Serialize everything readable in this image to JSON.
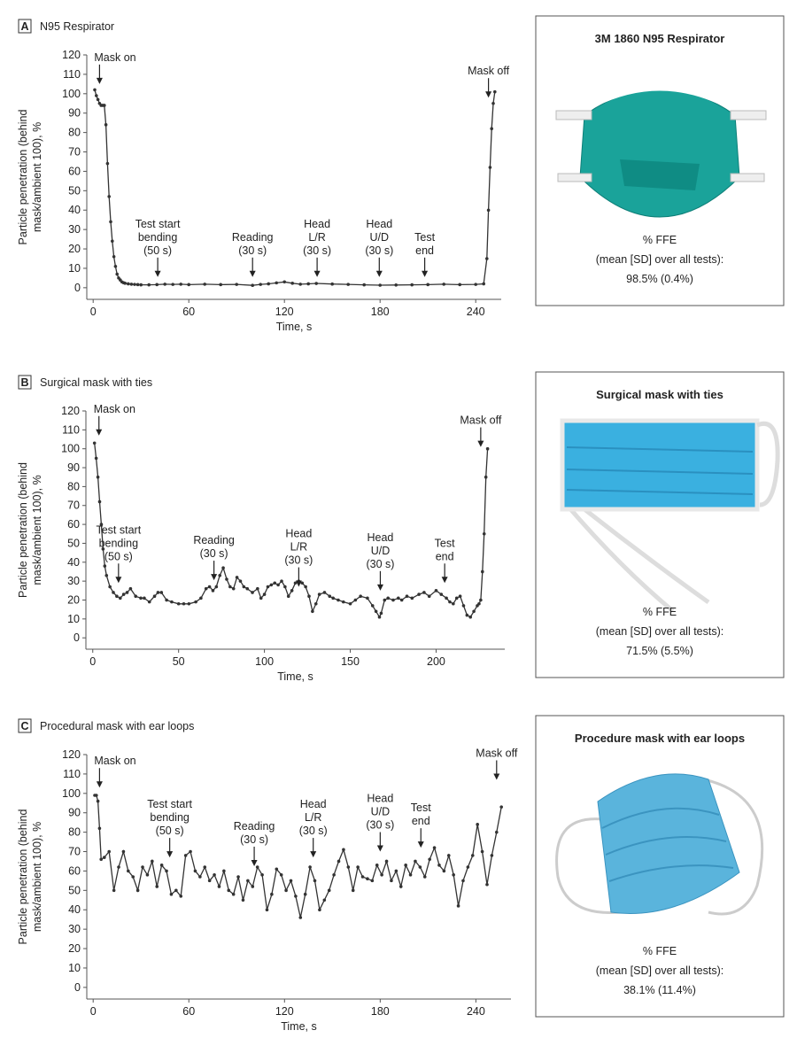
{
  "chart_data": [
    {
      "type": "line",
      "panel": "A",
      "title": "N95 Respirator",
      "xlabel": "Time, s",
      "ylabel": [
        "Particle penetration (behind",
        "mask/ambient 100), %"
      ],
      "color": "#333333",
      "xlim": [
        -4,
        256
      ],
      "ylim": [
        -6,
        120
      ],
      "xticks": [
        0,
        60,
        120,
        180,
        240
      ],
      "yticks": [
        0,
        10,
        20,
        30,
        40,
        50,
        60,
        70,
        80,
        90,
        100,
        110,
        120
      ],
      "x": [
        1,
        2,
        3,
        4,
        5,
        6,
        7,
        8,
        9,
        10,
        11,
        12,
        13,
        14,
        15,
        16,
        17,
        18,
        19,
        20,
        22,
        24,
        26,
        28,
        30,
        35,
        40,
        45,
        50,
        55,
        60,
        70,
        80,
        90,
        100,
        105,
        110,
        115,
        120,
        125,
        130,
        135,
        140,
        150,
        160,
        170,
        180,
        190,
        200,
        210,
        220,
        230,
        240,
        245,
        247,
        248,
        249,
        250,
        251,
        252
      ],
      "values": [
        102,
        99,
        97,
        95,
        94,
        94,
        94,
        84,
        64,
        47,
        34,
        24,
        16,
        11,
        7,
        5,
        4,
        3,
        2.6,
        2.3,
        2,
        1.8,
        1.7,
        1.6,
        1.5,
        1.5,
        1.6,
        1.8,
        1.7,
        1.8,
        1.6,
        1.8,
        1.6,
        1.7,
        1.2,
        1.7,
        2,
        2.5,
        3,
        2.3,
        1.8,
        2,
        2.2,
        1.9,
        1.7,
        1.5,
        1.3,
        1.4,
        1.5,
        1.6,
        1.8,
        1.6,
        1.7,
        2,
        15,
        40,
        62,
        82,
        95,
        101
      ],
      "annotations": [
        {
          "text": [
            "Mask on"
          ],
          "x": 4,
          "y": 105
        },
        {
          "text": [
            "Test start",
            "bending",
            "(50 s)"
          ],
          "x": 40.5,
          "y": 5.5
        },
        {
          "text": [
            "Reading",
            "(30 s)"
          ],
          "x": 100,
          "y": 5.5
        },
        {
          "text": [
            "Head",
            "L/R",
            "(30 s)"
          ],
          "x": 140.5,
          "y": 5.5
        },
        {
          "text": [
            "Head",
            "U/D",
            "(30 s)"
          ],
          "x": 179.5,
          "y": 5.5
        },
        {
          "text": [
            "Test",
            "end"
          ],
          "x": 208,
          "y": 5.5
        },
        {
          "text": [
            "Mask off"
          ],
          "x": 248,
          "y": 98
        }
      ],
      "card": {
        "title": "3M 1860 N95 Respirator",
        "lines": [
          "% FFE",
          "(mean [SD] over all tests):",
          "98.5% (0.4%)"
        ]
      }
    },
    {
      "type": "line",
      "panel": "B",
      "title": "Surgical mask with ties",
      "xlabel": "Time, s",
      "ylabel": [
        "Particle penetration (behind",
        "mask/ambient 100), %"
      ],
      "color": "#333333",
      "xlim": [
        -4,
        240
      ],
      "ylim": [
        -6,
        120
      ],
      "xticks": [
        0,
        50,
        100,
        150,
        200
      ],
      "yticks": [
        0,
        10,
        20,
        30,
        40,
        50,
        60,
        70,
        80,
        90,
        100,
        110,
        120
      ],
      "x": [
        1,
        2,
        3,
        4,
        5,
        6,
        7,
        8,
        10,
        12,
        14,
        16,
        18,
        20,
        22,
        25,
        28,
        30,
        33,
        36,
        38,
        40,
        43,
        46,
        50,
        53,
        56,
        60,
        63,
        66,
        68,
        70,
        72,
        74,
        76,
        78,
        80,
        82,
        84,
        86,
        88,
        90,
        93,
        96,
        98,
        100,
        102,
        104,
        106,
        108,
        110,
        112,
        114,
        116,
        118,
        120,
        122,
        124,
        126,
        128,
        130,
        132,
        135,
        138,
        140,
        143,
        146,
        150,
        153,
        156,
        160,
        163,
        165,
        167,
        168,
        170,
        172,
        175,
        178,
        180,
        183,
        186,
        190,
        193,
        196,
        200,
        203,
        206,
        208,
        210,
        212,
        214,
        216,
        218,
        220,
        222,
        224,
        225,
        226,
        227,
        228,
        229,
        230
      ],
      "values": [
        103,
        95,
        85,
        72,
        60,
        47,
        38,
        33,
        27,
        24,
        22,
        21,
        23,
        24,
        26,
        22,
        21,
        21,
        19,
        22,
        24,
        24,
        20,
        19,
        18,
        18,
        18,
        19,
        21,
        26,
        27,
        25,
        27,
        33,
        37,
        31,
        27,
        26,
        32,
        30,
        27,
        26,
        24,
        26,
        21,
        23,
        27,
        28,
        29,
        28,
        30,
        27,
        22,
        25,
        29,
        30,
        29,
        27,
        22,
        14,
        18,
        23,
        24,
        22,
        21,
        20,
        19,
        18,
        20,
        22,
        21,
        17,
        14,
        11,
        13,
        20,
        21,
        20,
        21,
        20,
        22,
        21,
        23,
        24,
        22,
        25,
        23,
        21,
        19,
        18,
        21,
        22,
        17,
        12,
        11,
        14,
        17,
        18,
        20,
        35,
        55,
        85,
        100
      ],
      "annotations": [
        {
          "text": [
            "Mask on"
          ],
          "x": 3.6,
          "y": 107
        },
        {
          "text": [
            "Test start",
            "bending",
            "(50 s)"
          ],
          "x": 15,
          "y": 29
        },
        {
          "text": [
            "Reading",
            "(30 s)"
          ],
          "x": 70.6,
          "y": 30.5
        },
        {
          "text": [
            "Head",
            "L/R",
            "(30 s)"
          ],
          "x": 120,
          "y": 27
        },
        {
          "text": [
            "Head",
            "U/D",
            "(30 s)"
          ],
          "x": 167.5,
          "y": 25
        },
        {
          "text": [
            "Test",
            "end"
          ],
          "x": 205,
          "y": 29
        },
        {
          "text": [
            "Mask off"
          ],
          "x": 226,
          "y": 101
        }
      ],
      "card": {
        "title": "Surgical mask with ties",
        "lines": [
          "% FFE",
          "(mean [SD] over all tests):",
          "71.5% (5.5%)"
        ]
      }
    },
    {
      "type": "line",
      "panel": "C",
      "title": "Procedural mask with ear loops",
      "xlabel": "Time, s",
      "ylabel": [
        "Particle penetration (behind",
        "mask/ambient 100), %"
      ],
      "color": "#333333",
      "xlim": [
        -4,
        262
      ],
      "ylim": [
        -6,
        120
      ],
      "xticks": [
        0,
        60,
        120,
        180,
        240
      ],
      "yticks": [
        0,
        10,
        20,
        30,
        40,
        50,
        60,
        70,
        80,
        90,
        100,
        110,
        120
      ],
      "x": [
        1,
        2,
        3,
        4,
        5,
        7,
        10,
        13,
        16,
        19,
        22,
        25,
        28,
        31,
        34,
        37,
        40,
        43,
        46,
        49,
        52,
        55,
        58,
        61,
        64,
        67,
        70,
        73,
        76,
        79,
        82,
        85,
        88,
        91,
        94,
        97,
        100,
        103,
        106,
        109,
        112,
        115,
        118,
        121,
        124,
        127,
        130,
        133,
        136,
        139,
        142,
        145,
        148,
        151,
        154,
        157,
        160,
        163,
        166,
        169,
        172,
        175,
        178,
        181,
        184,
        187,
        190,
        193,
        196,
        199,
        202,
        205,
        208,
        211,
        214,
        217,
        220,
        223,
        226,
        229,
        232,
        235,
        238,
        241,
        244,
        247,
        250,
        253,
        256
      ],
      "values": [
        99,
        99,
        96,
        82,
        66,
        67,
        70,
        50,
        62,
        70,
        60,
        57,
        50,
        62,
        58,
        65,
        52,
        63,
        60,
        48,
        50,
        47,
        68,
        70,
        60,
        57,
        62,
        55,
        58,
        52,
        60,
        50,
        48,
        57,
        45,
        55,
        52,
        62,
        58,
        40,
        48,
        61,
        58,
        50,
        55,
        47,
        36,
        48,
        62,
        55,
        40,
        45,
        50,
        58,
        65,
        71,
        62,
        50,
        62,
        57,
        56,
        55,
        63,
        58,
        65,
        55,
        60,
        52,
        63,
        58,
        65,
        62,
        57,
        66,
        72,
        63,
        60,
        68,
        58,
        42,
        55,
        62,
        68,
        84,
        70,
        53,
        68,
        80,
        93
      ],
      "annotations": [
        {
          "text": [
            "Mask on"
          ],
          "x": 4,
          "y": 103
        },
        {
          "text": [
            "Test start",
            "bending",
            "(50 s)"
          ],
          "x": 48,
          "y": 67
        },
        {
          "text": [
            "Reading",
            "(30 s)"
          ],
          "x": 101,
          "y": 62.5
        },
        {
          "text": [
            "Head",
            "L/R",
            "(30 s)"
          ],
          "x": 138,
          "y": 67
        },
        {
          "text": [
            "Head",
            "U/D",
            "(30 s)"
          ],
          "x": 180,
          "y": 70
        },
        {
          "text": [
            "Test",
            "end"
          ],
          "x": 205.5,
          "y": 72
        },
        {
          "text": [
            "Mask off"
          ],
          "x": 253,
          "y": 107
        }
      ],
      "card": {
        "title": "Procedure mask with ear loops",
        "lines": [
          "% FFE",
          "(mean [SD] over all tests):",
          "38.1% (11.4%)"
        ]
      }
    }
  ]
}
